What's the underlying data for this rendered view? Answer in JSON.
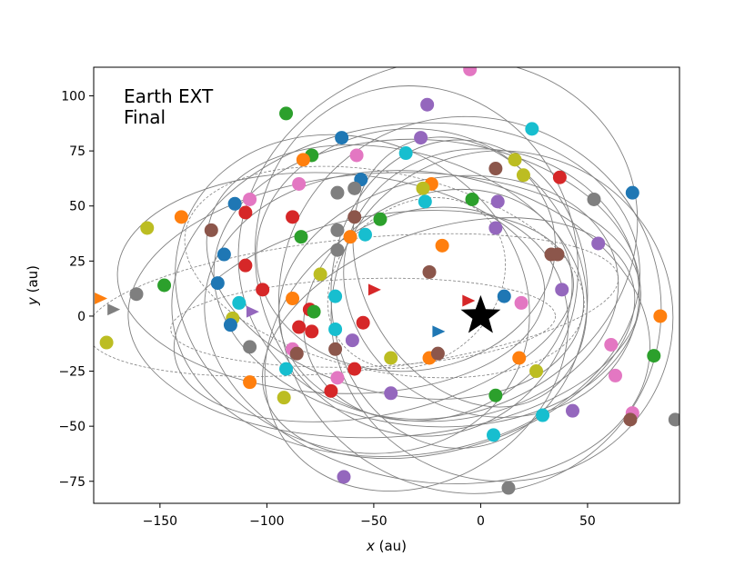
{
  "chart_data": {
    "type": "scatter",
    "annotation_lines": [
      "Earth EXT",
      "Final"
    ],
    "xlabel": {
      "var": "x",
      "unit": " (au)"
    },
    "ylabel": {
      "var": "y",
      "unit": " (au)"
    },
    "xlim": [
      -181,
      93
    ],
    "ylim": [
      -85,
      113
    ],
    "xticks": [
      -150,
      -100,
      -50,
      0,
      50
    ],
    "yticks": [
      -75,
      -50,
      -25,
      0,
      25,
      50,
      75,
      100
    ],
    "star": {
      "x": 0,
      "y": 0
    },
    "palette": [
      "#1f77b4",
      "#ff7f0e",
      "#2ca02c",
      "#d62728",
      "#9467bd",
      "#8c564b",
      "#e377c2",
      "#7f7f7f",
      "#bcbd22",
      "#17becf"
    ],
    "orbit_color": "#808080",
    "orbits": [
      {
        "cx": -15,
        "cy": 8,
        "rx": 80,
        "ry": 55,
        "rot": 10
      },
      {
        "cx": -25,
        "cy": 15,
        "rx": 100,
        "ry": 65,
        "rot": -5
      },
      {
        "cx": -35,
        "cy": 12,
        "rx": 110,
        "ry": 75,
        "rot": 8
      },
      {
        "cx": -20,
        "cy": 5,
        "rx": 65,
        "ry": 50,
        "rot": 25
      },
      {
        "cx": -40,
        "cy": 20,
        "rx": 90,
        "ry": 55,
        "rot": -15
      },
      {
        "cx": -10,
        "cy": 10,
        "rx": 60,
        "ry": 70,
        "rot": 0
      },
      {
        "cx": -45,
        "cy": 5,
        "rx": 120,
        "ry": 60,
        "rot": 3
      },
      {
        "cx": -30,
        "cy": 25,
        "rx": 75,
        "ry": 80,
        "rot": 15
      },
      {
        "cx": 5,
        "cy": 15,
        "rx": 70,
        "ry": 60,
        "rot": -20
      },
      {
        "cx": -50,
        "cy": 0,
        "rx": 95,
        "ry": 45,
        "rot": 12
      },
      {
        "cx": -25,
        "cy": -5,
        "rx": 105,
        "ry": 70,
        "rot": -10
      },
      {
        "cx": -5,
        "cy": 20,
        "rx": 50,
        "ry": 65,
        "rot": 30
      },
      {
        "cx": -60,
        "cy": 10,
        "rx": 85,
        "ry": 70,
        "rot": -25
      },
      {
        "cx": -15,
        "cy": -10,
        "rx": 90,
        "ry": 50,
        "rot": 18
      },
      {
        "cx": -35,
        "cy": 30,
        "rx": 70,
        "ry": 55,
        "rot": 5
      },
      {
        "cx": 10,
        "cy": 0,
        "rx": 80,
        "ry": 75,
        "rot": -8
      },
      {
        "cx": -20,
        "cy": 35,
        "rx": 95,
        "ry": 80,
        "rot": 22
      },
      {
        "cx": -70,
        "cy": 15,
        "rx": 100,
        "ry": 50,
        "rot": -3
      },
      {
        "cx": -30,
        "cy": -15,
        "rx": 75,
        "ry": 60,
        "rot": 35
      },
      {
        "cx": -5,
        "cy": 5,
        "rx": 90,
        "ry": 85,
        "rot": -30
      }
    ],
    "dashed_orbits": [
      {
        "cx": -60,
        "cy": 5,
        "rx": 125,
        "ry": 30,
        "rot": 6
      },
      {
        "cx": -45,
        "cy": 20,
        "rx": 95,
        "ry": 45,
        "rot": -12
      },
      {
        "cx": -55,
        "cy": -3,
        "rx": 90,
        "ry": 20,
        "rot": 2
      },
      {
        "cx": -30,
        "cy": 15,
        "rx": 45,
        "ry": 35,
        "rot": 40
      }
    ],
    "points": [
      {
        "x": -5,
        "y": 112,
        "c": 6
      },
      {
        "x": -25,
        "y": 96,
        "c": 4
      },
      {
        "x": -91,
        "y": 92,
        "c": 2
      },
      {
        "x": 24,
        "y": 85,
        "c": 9
      },
      {
        "x": -65,
        "y": 81,
        "c": 0
      },
      {
        "x": -28,
        "y": 81,
        "c": 4
      },
      {
        "x": -79,
        "y": 73,
        "c": 2
      },
      {
        "x": -58,
        "y": 73,
        "c": 6
      },
      {
        "x": -35,
        "y": 74,
        "c": 9
      },
      {
        "x": -83,
        "y": 71,
        "c": 1
      },
      {
        "x": 16,
        "y": 71,
        "c": 8
      },
      {
        "x": 7,
        "y": 67,
        "c": 5
      },
      {
        "x": 37,
        "y": 63,
        "c": 3
      },
      {
        "x": 20,
        "y": 64,
        "c": 8
      },
      {
        "x": -56,
        "y": 62,
        "c": 0
      },
      {
        "x": -23,
        "y": 60,
        "c": 1
      },
      {
        "x": -85,
        "y": 60,
        "c": 6
      },
      {
        "x": -59,
        "y": 58,
        "c": 7
      },
      {
        "x": -27,
        "y": 58,
        "c": 8
      },
      {
        "x": -67,
        "y": 56,
        "c": 7
      },
      {
        "x": 71,
        "y": 56,
        "c": 0
      },
      {
        "x": 53,
        "y": 53,
        "c": 7
      },
      {
        "x": -4,
        "y": 53,
        "c": 2
      },
      {
        "x": 8,
        "y": 52,
        "c": 4
      },
      {
        "x": -26,
        "y": 52,
        "c": 9
      },
      {
        "x": -108,
        "y": 53,
        "c": 6
      },
      {
        "x": -115,
        "y": 51,
        "c": 0
      },
      {
        "x": -140,
        "y": 45,
        "c": 1
      },
      {
        "x": -110,
        "y": 47,
        "c": 3
      },
      {
        "x": -88,
        "y": 45,
        "c": 3
      },
      {
        "x": -47,
        "y": 44,
        "c": 2
      },
      {
        "x": -59,
        "y": 45,
        "c": 5
      },
      {
        "x": -156,
        "y": 40,
        "c": 8
      },
      {
        "x": -126,
        "y": 39,
        "c": 5
      },
      {
        "x": -67,
        "y": 39,
        "c": 7
      },
      {
        "x": 7,
        "y": 40,
        "c": 4
      },
      {
        "x": -54,
        "y": 37,
        "c": 9
      },
      {
        "x": -61,
        "y": 36,
        "c": 1
      },
      {
        "x": -84,
        "y": 36,
        "c": 2
      },
      {
        "x": -18,
        "y": 32,
        "c": 1
      },
      {
        "x": 55,
        "y": 33,
        "c": 4
      },
      {
        "x": -67,
        "y": 30,
        "c": 7
      },
      {
        "x": -120,
        "y": 28,
        "c": 0
      },
      {
        "x": 33,
        "y": 28,
        "c": 5
      },
      {
        "x": 36,
        "y": 28,
        "c": 5
      },
      {
        "x": -110,
        "y": 23,
        "c": 3
      },
      {
        "x": -75,
        "y": 19,
        "c": 8
      },
      {
        "x": -24,
        "y": 20,
        "c": 5
      },
      {
        "x": -123,
        "y": 15,
        "c": 0
      },
      {
        "x": -148,
        "y": 14,
        "c": 2
      },
      {
        "x": -161,
        "y": 10,
        "c": 7
      },
      {
        "x": -102,
        "y": 12,
        "c": 3
      },
      {
        "x": -50,
        "y": 12,
        "c": 3,
        "m": "tri"
      },
      {
        "x": 38,
        "y": 12,
        "c": 4
      },
      {
        "x": -113,
        "y": 6,
        "c": 9
      },
      {
        "x": -88,
        "y": 8,
        "c": 1
      },
      {
        "x": -68,
        "y": 9,
        "c": 9
      },
      {
        "x": -80,
        "y": 3,
        "c": 3
      },
      {
        "x": -78,
        "y": 2,
        "c": 2
      },
      {
        "x": 11,
        "y": 9,
        "c": 0
      },
      {
        "x": -6,
        "y": 7,
        "c": 3,
        "m": "tri"
      },
      {
        "x": 19,
        "y": 6,
        "c": 6
      },
      {
        "x": -107,
        "y": 2,
        "c": 4,
        "m": "tri"
      },
      {
        "x": -172,
        "y": 3,
        "c": 7,
        "m": "tri"
      },
      {
        "x": -178,
        "y": 8,
        "c": 1,
        "m": "tri"
      },
      {
        "x": 84,
        "y": 0,
        "c": 1
      },
      {
        "x": -116,
        "y": -1,
        "c": 8
      },
      {
        "x": -117,
        "y": -4,
        "c": 0
      },
      {
        "x": -85,
        "y": -5,
        "c": 3
      },
      {
        "x": -79,
        "y": -7,
        "c": 3
      },
      {
        "x": -55,
        "y": -3,
        "c": 3
      },
      {
        "x": -68,
        "y": -6,
        "c": 9
      },
      {
        "x": -20,
        "y": -7,
        "c": 0,
        "m": "tri"
      },
      {
        "x": -175,
        "y": -12,
        "c": 8
      },
      {
        "x": -108,
        "y": -14,
        "c": 7
      },
      {
        "x": -60,
        "y": -11,
        "c": 4
      },
      {
        "x": -88,
        "y": -15,
        "c": 6
      },
      {
        "x": -86,
        "y": -17,
        "c": 5
      },
      {
        "x": -68,
        "y": -15,
        "c": 5
      },
      {
        "x": -42,
        "y": -19,
        "c": 8
      },
      {
        "x": -24,
        "y": -19,
        "c": 1
      },
      {
        "x": -20,
        "y": -17,
        "c": 5
      },
      {
        "x": 18,
        "y": -19,
        "c": 1
      },
      {
        "x": 61,
        "y": -13,
        "c": 6
      },
      {
        "x": 81,
        "y": -18,
        "c": 2
      },
      {
        "x": 26,
        "y": -25,
        "c": 8
      },
      {
        "x": -91,
        "y": -24,
        "c": 9
      },
      {
        "x": -59,
        "y": -24,
        "c": 3
      },
      {
        "x": -67,
        "y": -28,
        "c": 6
      },
      {
        "x": 63,
        "y": -27,
        "c": 6
      },
      {
        "x": -108,
        "y": -30,
        "c": 1
      },
      {
        "x": -70,
        "y": -34,
        "c": 3
      },
      {
        "x": -42,
        "y": -35,
        "c": 4
      },
      {
        "x": 7,
        "y": -36,
        "c": 2
      },
      {
        "x": -92,
        "y": -37,
        "c": 8
      },
      {
        "x": 29,
        "y": -45,
        "c": 9
      },
      {
        "x": 43,
        "y": -43,
        "c": 4
      },
      {
        "x": 71,
        "y": -44,
        "c": 6
      },
      {
        "x": 70,
        "y": -47,
        "c": 5
      },
      {
        "x": 91,
        "y": -47,
        "c": 7
      },
      {
        "x": 6,
        "y": -54,
        "c": 9
      },
      {
        "x": -64,
        "y": -73,
        "c": 4
      },
      {
        "x": 13,
        "y": -78,
        "c": 7
      }
    ]
  }
}
